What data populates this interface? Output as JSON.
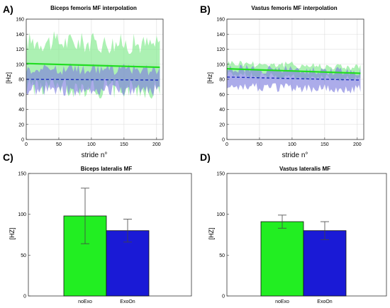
{
  "panels": [
    {
      "letter": "A)",
      "title": "Biceps femoris MF interpolation",
      "ylabel": "[Hz]",
      "xlabel": "stride n°",
      "chart_data": {
        "type": "line",
        "title": "Biceps femoris MF interpolation",
        "xlabel": "stride n°",
        "ylabel": "[Hz]",
        "xlim": [
          0,
          210
        ],
        "ylim": [
          0,
          160
        ],
        "xticks": [
          0,
          50,
          100,
          150,
          200
        ],
        "yticks": [
          0,
          20,
          40,
          60,
          80,
          100,
          120,
          140,
          160
        ],
        "grid": true,
        "series": [
          {
            "color": "#22dd22",
            "style": "solid",
            "x": [
              0,
              205
            ],
            "y": [
              101,
              96
            ]
          },
          {
            "color": "#1f2fbf",
            "style": "dashed",
            "x": [
              0,
              205
            ],
            "y": [
              80,
              79
            ]
          }
        ],
        "bands": [
          {
            "color": "#7fe98a",
            "x": [
              0,
              205
            ],
            "center": [
              101,
              96
            ],
            "halfwidth": 30,
            "amp": 14
          },
          {
            "color": "#7f7fdf",
            "x": [
              0,
              205
            ],
            "center": [
              80,
              79
            ],
            "halfwidth": 14,
            "amp": 8
          }
        ]
      }
    },
    {
      "letter": "B)",
      "title": "Vastus femoris MF interpolation",
      "ylabel": "[Hz]",
      "xlabel": "stride n°",
      "chart_data": {
        "type": "line",
        "title": "Vastus femoris MF interpolation",
        "xlabel": "stride n°",
        "ylabel": "[Hz]",
        "xlim": [
          0,
          210
        ],
        "ylim": [
          0,
          160
        ],
        "xticks": [
          0,
          50,
          100,
          150,
          200
        ],
        "yticks": [
          0,
          20,
          40,
          60,
          80,
          100,
          120,
          140,
          160
        ],
        "grid": true,
        "series": [
          {
            "color": "#22dd22",
            "style": "solid",
            "x": [
              0,
              205
            ],
            "y": [
              94,
              88
            ]
          },
          {
            "color": "#1f2fbf",
            "style": "dashed",
            "x": [
              0,
              205
            ],
            "y": [
              83,
              79
            ]
          }
        ],
        "bands": [
          {
            "color": "#7fe98a",
            "x": [
              0,
              205
            ],
            "center": [
              94,
              88
            ],
            "halfwidth": 8,
            "amp": 5
          },
          {
            "color": "#7f7fdf",
            "x": [
              0,
              205
            ],
            "center": [
              82,
              79
            ],
            "halfwidth": 12,
            "amp": 6
          }
        ]
      }
    },
    {
      "letter": "C)",
      "title": "Biceps lateralis MF",
      "ylabel": "[HZ]",
      "xlabel": "",
      "chart_data": {
        "type": "bar",
        "title": "Biceps lateralis MF",
        "xlabel": "",
        "ylabel": "[HZ]",
        "ylim": [
          0,
          150
        ],
        "yticks": [
          0,
          50,
          100,
          150
        ],
        "grid": false,
        "categories": [
          "noExo",
          "ExoOn"
        ],
        "values": [
          98,
          80
        ],
        "errors": [
          34,
          14
        ],
        "colors": [
          "#22ee22",
          "#1a1ad6"
        ]
      }
    },
    {
      "letter": "D)",
      "title": "Vastus lateralis MF",
      "ylabel": "[HZ]",
      "xlabel": "",
      "chart_data": {
        "type": "bar",
        "title": "Vastus lateralis MF",
        "xlabel": "",
        "ylabel": "[HZ]",
        "ylim": [
          0,
          150
        ],
        "yticks": [
          0,
          50,
          100,
          150
        ],
        "grid": false,
        "categories": [
          "noExo",
          "ExoOn"
        ],
        "values": [
          91,
          80
        ],
        "errors": [
          8,
          11
        ],
        "colors": [
          "#22ee22",
          "#1a1ad6"
        ]
      }
    }
  ]
}
